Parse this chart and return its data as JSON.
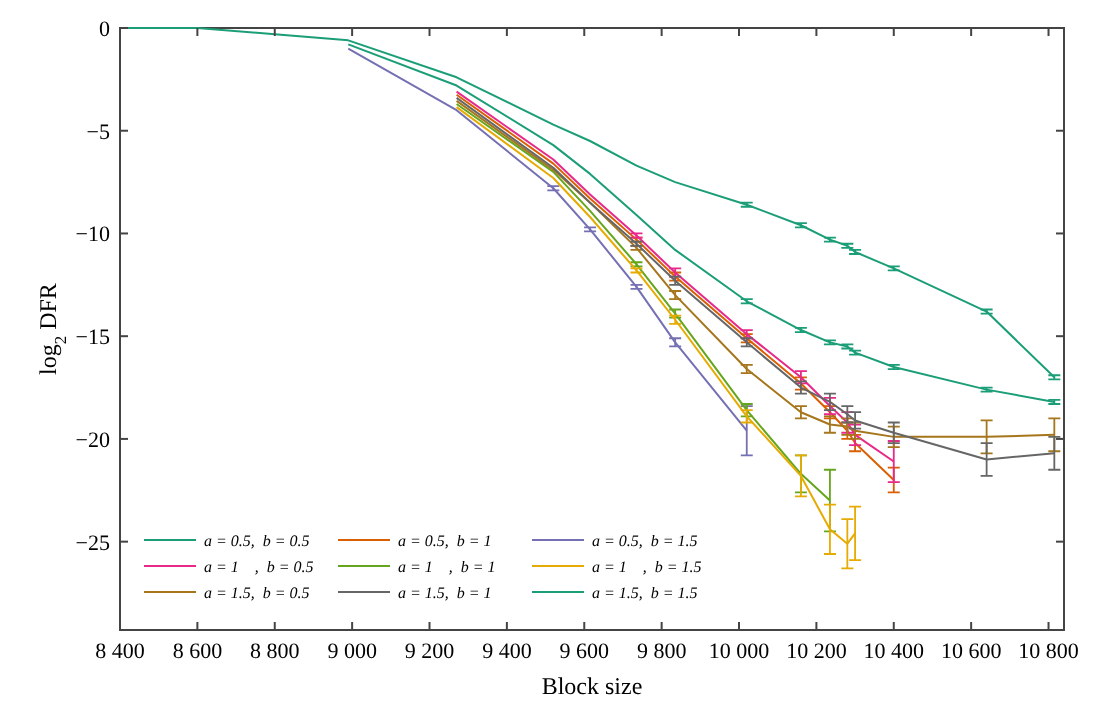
{
  "chart_data": {
    "type": "line",
    "xlabel": "Block size",
    "ylabel": "log$_{2}$ DFR",
    "x": [
      8400,
      8600,
      8800,
      8990,
      9270,
      9520,
      9615,
      9735,
      9835,
      10020,
      10160,
      10235,
      10280,
      10300,
      10400,
      10640,
      10815
    ],
    "xlim": [
      8400,
      10840
    ],
    "ylim": [
      -29.3,
      0
    ],
    "xticks": [
      {
        "value": 8400,
        "label": "8 400"
      },
      {
        "value": 8600,
        "label": "8 600"
      },
      {
        "value": 8800,
        "label": "8 800"
      },
      {
        "value": 9000,
        "label": "9 000"
      },
      {
        "value": 9200,
        "label": "9 200"
      },
      {
        "value": 9400,
        "label": "9 400"
      },
      {
        "value": 9600,
        "label": "9 600"
      },
      {
        "value": 9800,
        "label": "9 800"
      },
      {
        "value": 10000,
        "label": "10 000"
      },
      {
        "value": 10200,
        "label": "10 200"
      },
      {
        "value": 10400,
        "label": "10 400"
      },
      {
        "value": 10600,
        "label": "10 600"
      },
      {
        "value": 10800,
        "label": "10 800"
      }
    ],
    "yticks": [
      0,
      {
        "value": -5,
        "label": "−5"
      },
      {
        "value": -10,
        "label": "−10"
      },
      {
        "value": -15,
        "label": "−15"
      },
      {
        "value": -20,
        "label": "−20"
      },
      {
        "value": -25,
        "label": "−25"
      }
    ],
    "legend": "bottom left",
    "line_style": "solid",
    "grid": false,
    "series": [
      {
        "name": "a = 0.5,  b = 0.5",
        "color": "#1b9e77",
        "values": [
          null,
          null,
          null,
          -0.8,
          -2.8,
          -5.7,
          -7.1,
          -9.1,
          -10.8,
          -13.3,
          -14.7,
          -15.3,
          -15.5,
          -15.8,
          -16.5,
          -17.6,
          -18.2
        ],
        "errors": [
          null,
          null,
          null,
          null,
          null,
          null,
          null,
          null,
          null,
          0.1,
          0.1,
          0.1,
          0.1,
          0.1,
          0.1,
          0.1,
          0.1
        ]
      },
      {
        "name": "a = 0.5,  b = 1",
        "color": "#d95f02",
        "values": [
          null,
          null,
          null,
          null,
          -3.25,
          -6.6,
          -8.3,
          -10.3,
          -12.1,
          -15.1,
          -17.3,
          -18.7,
          -19.6,
          -20.2,
          -22.0,
          null,
          null
        ],
        "errors": [
          null,
          null,
          null,
          null,
          null,
          null,
          null,
          0.1,
          0.2,
          0.2,
          0.3,
          0.3,
          0.4,
          0.4,
          0.6,
          null,
          null
        ]
      },
      {
        "name": "a = 0.5,  b = 1.5",
        "color": "#7570b3",
        "values": [
          null,
          null,
          null,
          -1.0,
          -4.0,
          -7.8,
          -9.8,
          -12.6,
          -15.3,
          -19.6,
          null,
          null,
          null,
          null,
          null,
          null,
          null
        ],
        "errors": [
          null,
          null,
          null,
          null,
          null,
          0.1,
          0.1,
          0.1,
          0.2,
          1.2,
          null,
          null,
          null,
          null,
          null,
          null,
          null
        ]
      },
      {
        "name": "a = 1    ,  b = 0.5",
        "color": "#e7298a",
        "values": [
          null,
          null,
          null,
          null,
          -3.1,
          -6.4,
          -8.1,
          -10.1,
          -11.9,
          -14.9,
          -17.0,
          -18.4,
          -19.2,
          -19.8,
          -21.1,
          null,
          null
        ],
        "errors": [
          null,
          null,
          null,
          null,
          null,
          null,
          null,
          0.1,
          0.2,
          0.2,
          0.3,
          0.4,
          0.5,
          0.5,
          1.0,
          null,
          null
        ]
      },
      {
        "name": "a = 1    ,  b = 1",
        "color": "#66a61e",
        "values": [
          null,
          null,
          null,
          null,
          -3.7,
          -7.0,
          -8.9,
          -11.5,
          -13.9,
          -18.6,
          -21.7,
          -23.0,
          null,
          null,
          null,
          null,
          null
        ],
        "errors": [
          null,
          null,
          null,
          null,
          null,
          null,
          null,
          0.1,
          0.2,
          0.3,
          0.9,
          1.5,
          null,
          null,
          null,
          null,
          null
        ]
      },
      {
        "name": "a = 1    ,  b = 1.5",
        "color": "#e6ab02",
        "values": [
          null,
          null,
          null,
          null,
          -3.85,
          -7.3,
          -9.2,
          -11.8,
          -14.2,
          -18.9,
          -21.8,
          -24.4,
          -25.1,
          -24.6,
          null,
          null,
          null
        ],
        "errors": [
          null,
          null,
          null,
          null,
          null,
          null,
          null,
          0.1,
          0.2,
          0.3,
          1.0,
          1.2,
          1.2,
          1.3,
          null,
          null,
          null
        ]
      },
      {
        "name": "a = 1.5,  b = 0.5",
        "color": "#a6761d",
        "values": [
          null,
          null,
          null,
          null,
          -3.55,
          -6.9,
          -8.5,
          -10.7,
          -13.0,
          -16.6,
          -18.7,
          -19.3,
          -19.4,
          -19.6,
          -19.9,
          -19.9,
          -19.8
        ],
        "errors": [
          null,
          null,
          null,
          null,
          null,
          null,
          null,
          0.1,
          0.2,
          0.2,
          0.3,
          0.4,
          0.4,
          0.4,
          0.5,
          0.8,
          0.8
        ]
      },
      {
        "name": "a = 1.5,  b = 1",
        "color": "#666666",
        "values": [
          null,
          null,
          null,
          null,
          -3.4,
          -6.8,
          -8.5,
          -10.5,
          -12.3,
          -15.3,
          -17.5,
          -18.2,
          -18.8,
          -19.1,
          -19.7,
          -21.0,
          -20.7
        ],
        "errors": [
          null,
          null,
          null,
          null,
          null,
          null,
          null,
          0.1,
          0.2,
          0.2,
          0.3,
          0.4,
          0.4,
          0.4,
          0.5,
          0.8,
          0.8
        ]
      },
      {
        "name": "a = 1.5,  b = 1.5",
        "color": "#1b9e77",
        "values": [
          0,
          0,
          -0.3,
          -0.6,
          -2.4,
          -4.7,
          -5.5,
          -6.7,
          -7.5,
          -8.6,
          -9.6,
          -10.3,
          -10.6,
          -10.9,
          -11.7,
          -13.8,
          -17.0
        ],
        "errors": [
          null,
          null,
          null,
          null,
          null,
          null,
          null,
          null,
          null,
          0.1,
          0.1,
          0.1,
          0.1,
          0.1,
          0.1,
          0.1,
          0.1
        ]
      }
    ]
  }
}
